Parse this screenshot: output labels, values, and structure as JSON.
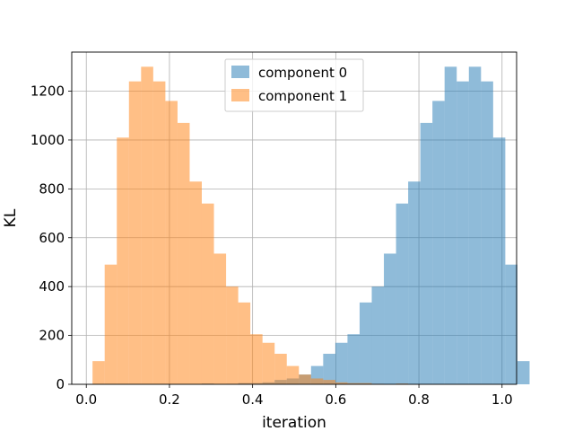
{
  "chart_data": {
    "type": "bar",
    "title": "",
    "xlabel": "iteration",
    "ylabel": "KL",
    "xlim": [
      -0.035,
      1.035
    ],
    "ylim": [
      0,
      1360
    ],
    "grid": true,
    "legend_position": "top-center",
    "x_ticks": [
      0.0,
      0.2,
      0.4,
      0.6,
      0.8,
      1.0
    ],
    "x_tick_labels": [
      "0.0",
      "0.2",
      "0.4",
      "0.6",
      "0.8",
      "1.0"
    ],
    "y_ticks": [
      0,
      200,
      400,
      600,
      800,
      1000,
      1200
    ],
    "y_tick_labels": [
      "0",
      "200",
      "400",
      "600",
      "800",
      "1000",
      "1200"
    ],
    "bin_start": 0.015,
    "bin_width": 0.0292,
    "series": [
      {
        "name": "component 0",
        "color": "#1f77b4",
        "opacity": 0.5,
        "values": [
          0,
          0,
          0,
          0,
          0,
          0,
          0,
          0,
          0,
          3,
          0,
          2,
          5,
          5,
          8,
          18,
          24,
          40,
          75,
          125,
          170,
          205,
          335,
          400,
          535,
          740,
          830,
          1070,
          1160,
          1300,
          1240,
          1300,
          1240,
          1010,
          490,
          95
        ]
      },
      {
        "name": "component 1",
        "color": "#ff7f0e",
        "opacity": 0.5,
        "values": [
          95,
          490,
          1010,
          1240,
          1300,
          1240,
          1160,
          1070,
          830,
          740,
          535,
          400,
          335,
          205,
          170,
          125,
          75,
          40,
          24,
          18,
          8,
          5,
          5,
          2,
          0,
          3,
          0,
          0,
          0,
          0,
          0,
          0,
          0,
          0,
          0,
          0
        ]
      }
    ]
  }
}
